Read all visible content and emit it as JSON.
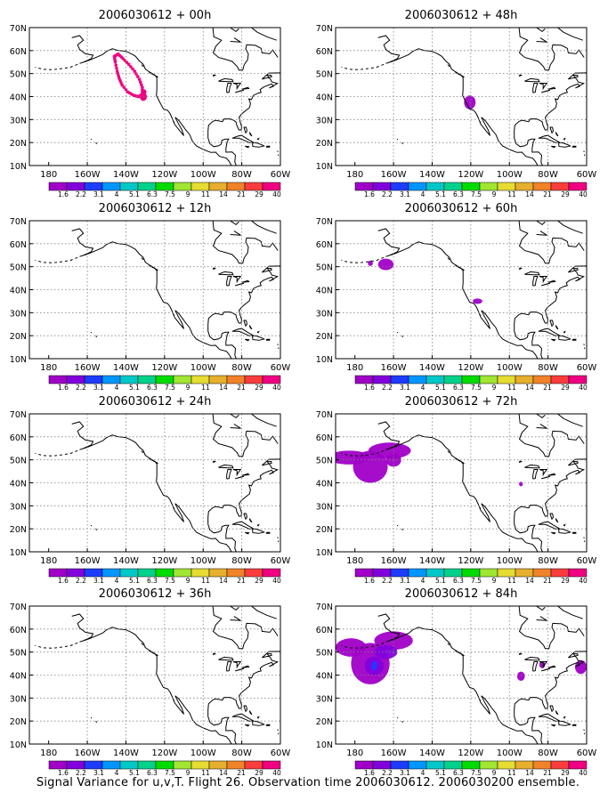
{
  "lat_labels": [
    "70N",
    "60N",
    "50N",
    "40N",
    "30N",
    "20N",
    "10N"
  ],
  "lon_labels": [
    "180",
    "160W",
    "140W",
    "120W",
    "100W",
    "80W",
    "60W"
  ],
  "colorbar": {
    "levels": [
      "1.6",
      "2.2",
      "3.1",
      "4",
      "5.1",
      "6.3",
      "7.5",
      "9",
      "11",
      "14",
      "21",
      "29",
      "40"
    ],
    "colors": [
      "#a000c8",
      "#8200dc",
      "#1e3cff",
      "#0096ff",
      "#00c8c8",
      "#00d28c",
      "#00dc00",
      "#a0e632",
      "#e6dc32",
      "#e6af2d",
      "#f08228",
      "#fa3c3c",
      "#f00082"
    ]
  },
  "panels": [
    {
      "title": "2006030612 + 00h",
      "col": 0,
      "row": 0
    },
    {
      "title": "2006030612 + 12h",
      "col": 0,
      "row": 1
    },
    {
      "title": "2006030612 + 24h",
      "col": 0,
      "row": 2
    },
    {
      "title": "2006030612 + 36h",
      "col": 0,
      "row": 3
    },
    {
      "title": "2006030612 + 48h",
      "col": 1,
      "row": 0
    },
    {
      "title": "2006030612 + 60h",
      "col": 1,
      "row": 1
    },
    {
      "title": "2006030612 + 72h",
      "col": 1,
      "row": 2
    },
    {
      "title": "2006030612 + 84h",
      "col": 1,
      "row": 3
    }
  ],
  "footer": "Signal Variance for u,v,T. Flight 26. Observation time 2006030612. 2006030200 ensemble."
}
